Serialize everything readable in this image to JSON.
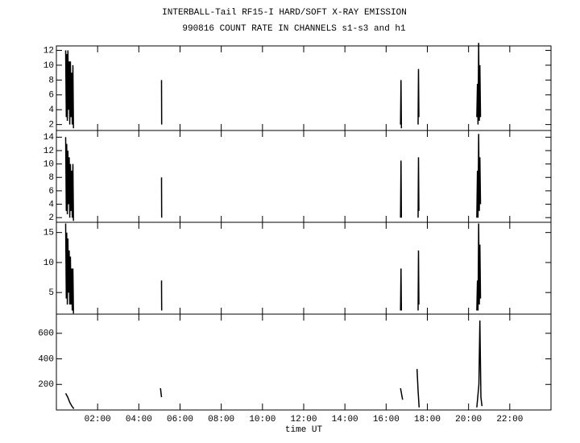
{
  "chart_data": [
    {
      "type": "line",
      "title": "INTERBALL-Tail RF15-I HARD/SOFT X-RAY EMISSION",
      "subtitle": "990816  COUNT RATE IN CHANNELS s1-s3 and h1",
      "xlim": [
        0,
        24
      ],
      "ylim": [
        1.2,
        12.6
      ],
      "yticks": [
        2,
        4,
        6,
        8,
        10,
        12
      ],
      "series": [
        {
          "color": "#000000",
          "x": [
            0.45,
            0.48,
            0.5,
            0.53,
            0.56,
            0.59,
            0.62,
            0.65,
            0.68,
            0.71,
            0.74,
            0.77,
            0.8,
            0.83,
            null,
            5.1,
            5.11,
            null,
            16.7,
            16.72,
            16.74,
            null,
            17.55,
            17.57,
            17.59,
            null,
            20.4,
            20.43,
            20.46,
            20.49,
            20.52,
            20.55,
            20.58
          ],
          "values": [
            12,
            3,
            11.5,
            2.5,
            12,
            4,
            10.5,
            2,
            10.5,
            3,
            9,
            2,
            10,
            1.5,
            null,
            8,
            2,
            null,
            2,
            8,
            1.5,
            null,
            2,
            9.5,
            3,
            null,
            3,
            7.5,
            2,
            13,
            2.5,
            10,
            3
          ]
        }
      ]
    },
    {
      "type": "line",
      "xlim": [
        0,
        24
      ],
      "ylim": [
        1.3,
        15
      ],
      "yticks": [
        2,
        4,
        6,
        8,
        10,
        12,
        14
      ],
      "series": [
        {
          "color": "#000000",
          "x": [
            0.45,
            0.48,
            0.5,
            0.53,
            0.56,
            0.59,
            0.62,
            0.65,
            0.68,
            0.71,
            0.74,
            0.77,
            0.8,
            0.83,
            null,
            5.1,
            5.11,
            null,
            16.7,
            16.72,
            16.74,
            null,
            17.55,
            17.57,
            17.59,
            null,
            20.4,
            20.43,
            20.46,
            20.49,
            20.52,
            20.55,
            20.58
          ],
          "values": [
            14,
            3,
            13,
            2.5,
            12,
            4,
            11,
            2,
            10,
            3,
            9,
            2,
            10,
            1.5,
            null,
            8,
            2,
            null,
            2,
            10.5,
            2,
            null,
            2,
            11,
            3,
            null,
            2,
            9,
            2,
            14.5,
            3,
            11,
            4
          ]
        }
      ]
    },
    {
      "type": "line",
      "xlim": [
        0,
        24
      ],
      "ylim": [
        1.4,
        16.7
      ],
      "yticks": [
        5,
        10,
        15
      ],
      "series": [
        {
          "color": "#000000",
          "x": [
            0.45,
            0.48,
            0.5,
            0.53,
            0.56,
            0.59,
            0.62,
            0.65,
            0.68,
            0.71,
            0.74,
            0.77,
            0.8,
            0.83,
            null,
            5.1,
            5.11,
            null,
            16.7,
            16.72,
            16.74,
            null,
            17.55,
            17.57,
            17.59,
            null,
            20.4,
            20.43,
            20.46,
            20.49,
            20.52,
            20.55,
            20.58
          ],
          "values": [
            16.5,
            4,
            15,
            3,
            14,
            5,
            12,
            3,
            11,
            3,
            9,
            2,
            9,
            1.5,
            null,
            7,
            2,
            null,
            2,
            9,
            2,
            null,
            2,
            12,
            3,
            null,
            2,
            7,
            2,
            16.5,
            3,
            13,
            4
          ]
        }
      ]
    },
    {
      "type": "line",
      "xlabel": "time UT",
      "xlim": [
        0,
        24
      ],
      "ylim": [
        0,
        750
      ],
      "yticks": [
        200,
        400,
        600
      ],
      "xticks": [
        {
          "value": 2,
          "label": "02:00"
        },
        {
          "value": 4,
          "label": "04:00"
        },
        {
          "value": 6,
          "label": "06:00"
        },
        {
          "value": 8,
          "label": "08:00"
        },
        {
          "value": 10,
          "label": "10:00"
        },
        {
          "value": 12,
          "label": "12:00"
        },
        {
          "value": 14,
          "label": "14:00"
        },
        {
          "value": 16,
          "label": "16:00"
        },
        {
          "value": 18,
          "label": "18:00"
        },
        {
          "value": 20,
          "label": "20:00"
        },
        {
          "value": 22,
          "label": "22:00"
        }
      ],
      "series": [
        {
          "color": "#000000",
          "x": [
            0.45,
            0.55,
            0.65,
            0.75,
            0.85,
            null,
            5.05,
            5.1,
            null,
            16.7,
            16.8,
            null,
            17.5,
            17.55,
            17.6,
            null,
            20.4,
            20.5,
            20.55,
            20.6,
            20.65
          ],
          "values": [
            130,
            100,
            60,
            30,
            10,
            null,
            170,
            100,
            null,
            170,
            80,
            null,
            320,
            150,
            20,
            null,
            20,
            200,
            700,
            100,
            30
          ]
        }
      ]
    }
  ]
}
